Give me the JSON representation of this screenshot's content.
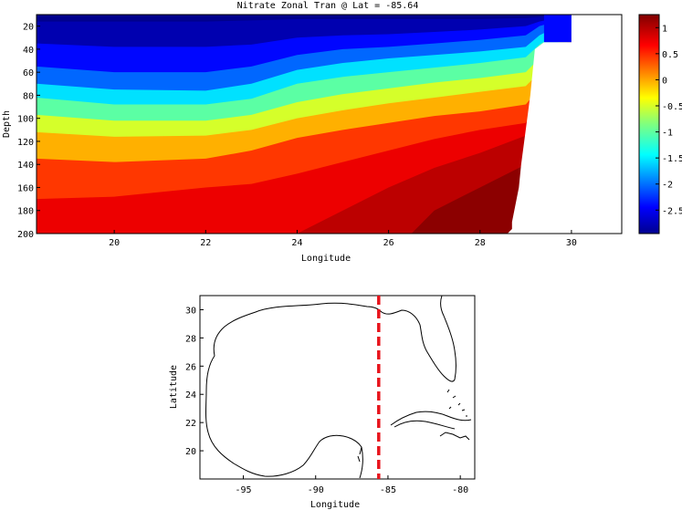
{
  "chart_data": [
    {
      "type": "heatmap",
      "title": "Nitrate Zonal Tran @ Lat = -85.64",
      "xlabel": "Longitude",
      "ylabel": "Depth",
      "xlim": [
        18.3,
        31.1
      ],
      "ylim": [
        200,
        10
      ],
      "xticks": [
        "20",
        "22",
        "24",
        "26",
        "28",
        "30"
      ],
      "yticks": [
        "20",
        "40",
        "60",
        "80",
        "100",
        "120",
        "140",
        "160",
        "180",
        "200"
      ],
      "colorbar": {
        "range": [
          -2.95,
          1.25
        ],
        "ticks": [
          "1",
          "0.5",
          "0",
          "-0.5",
          "-1",
          "-1.5",
          "-2",
          "-2.5"
        ],
        "colormap": "jet"
      },
      "contours": [
        {
          "level": -2.75,
          "depth_x": [
            18.3,
            20,
            22,
            23,
            24,
            25,
            26,
            27,
            28,
            29,
            29.3,
            30
          ],
          "depth_y": [
            16,
            16,
            16,
            15,
            14,
            14,
            14,
            14,
            14,
            13,
            12,
            10
          ]
        },
        {
          "level": -2.4,
          "depth_x": [
            18.3,
            20,
            22,
            23,
            24,
            25,
            26,
            27,
            28,
            29,
            29.3,
            30
          ],
          "depth_y": [
            35,
            38,
            38,
            36,
            30,
            28,
            27,
            25,
            23,
            20,
            16,
            10
          ]
        },
        {
          "level": -2.0,
          "depth_x": [
            18.3,
            20,
            22,
            23,
            24,
            25,
            26,
            27,
            28,
            29,
            29.3,
            30
          ],
          "depth_y": [
            55,
            60,
            60,
            55,
            45,
            40,
            38,
            35,
            32,
            28,
            20,
            12
          ]
        },
        {
          "level": -1.5,
          "depth_x": [
            18.3,
            20,
            22,
            23,
            24,
            25,
            26,
            27,
            28,
            29,
            29.3,
            30
          ],
          "depth_y": [
            70,
            75,
            76,
            70,
            58,
            52,
            48,
            45,
            42,
            38,
            28,
            14
          ]
        },
        {
          "level": -1.0,
          "depth_x": [
            18.3,
            20,
            22,
            23,
            24,
            25,
            26,
            27,
            28,
            29,
            29.3,
            30
          ],
          "depth_y": [
            82,
            88,
            88,
            83,
            70,
            64,
            60,
            56,
            52,
            47,
            36,
            18
          ]
        },
        {
          "level": -0.5,
          "depth_x": [
            18.3,
            20,
            22,
            23,
            24,
            25,
            26,
            27,
            28,
            29,
            29.3,
            30
          ],
          "depth_y": [
            97,
            102,
            102,
            97,
            86,
            79,
            74,
            69,
            65,
            60,
            48,
            24
          ]
        },
        {
          "level": 0.0,
          "depth_x": [
            18.3,
            20,
            22,
            23,
            24,
            25,
            26,
            27,
            28,
            29,
            29.3,
            30
          ],
          "depth_y": [
            112,
            116,
            115,
            110,
            100,
            93,
            87,
            82,
            77,
            72,
            60,
            30
          ]
        },
        {
          "level": 0.5,
          "depth_x": [
            18.3,
            20,
            22,
            23,
            24,
            25,
            26,
            27,
            28,
            29,
            29.3,
            30
          ],
          "depth_y": [
            135,
            138,
            135,
            128,
            117,
            110,
            104,
            98,
            94,
            88,
            74,
            40
          ]
        },
        {
          "level": 0.8,
          "depth_x": [
            18.3,
            20,
            22,
            23,
            24,
            25,
            26,
            27,
            28,
            29,
            29.3,
            30
          ],
          "depth_y": [
            170,
            168,
            160,
            157,
            148,
            138,
            128,
            118,
            110,
            104,
            88,
            50
          ]
        },
        {
          "level": 1.0,
          "depth_x": [
            18.3,
            20,
            22,
            23,
            24,
            25,
            26,
            27,
            28,
            29,
            29.3,
            30
          ],
          "depth_y": [
            200,
            200,
            200,
            200,
            200,
            180,
            160,
            143,
            130,
            115,
            100,
            60
          ]
        },
        {
          "level": 1.2,
          "depth_x": [
            18.3,
            20,
            22,
            24,
            26,
            26.5,
            27,
            28,
            29,
            29.3,
            30
          ],
          "depth_y": [
            210,
            210,
            210,
            210,
            210,
            200,
            180,
            160,
            140,
            120,
            90
          ]
        }
      ],
      "land_boundary": {
        "x": [
          29.4,
          29.2,
          29.1,
          29.0,
          28.9,
          28.85,
          28.8,
          28.75,
          28.7,
          28.7,
          28.6
        ],
        "y": [
          10,
          40,
          80,
          110,
          140,
          160,
          170,
          180,
          190,
          196,
          200
        ]
      }
    },
    {
      "type": "map",
      "xlabel": "Longitude",
      "ylabel": "Latitude",
      "xlim": [
        -98,
        -79
      ],
      "ylim": [
        18,
        31
      ],
      "xticks": [
        "-95",
        "-90",
        "-85",
        "-80"
      ],
      "yticks": [
        "30",
        "28",
        "26",
        "24",
        "22",
        "20"
      ],
      "transect_longitude": -85.64,
      "transect_color": "#e8141c"
    }
  ]
}
